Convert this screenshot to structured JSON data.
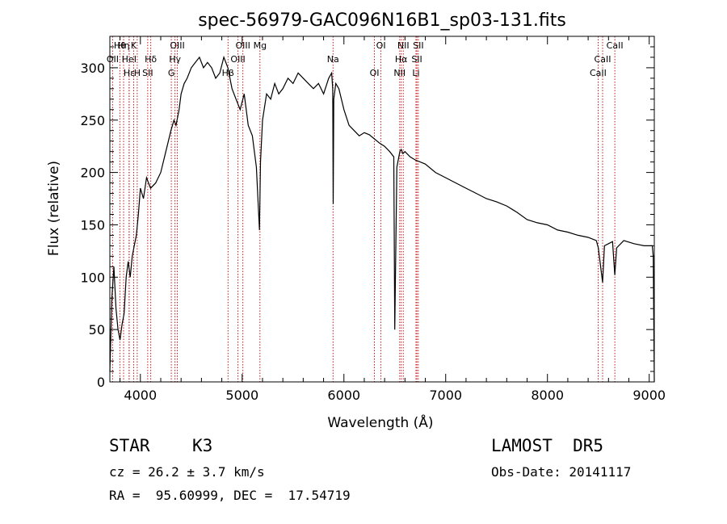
{
  "chart_data": {
    "type": "line",
    "title": "spec-56979-GAC096N16B1_sp03-131.fits",
    "xlabel": "Wavelength (Å)",
    "ylabel": "Flux (relative)",
    "xlim": [
      3700,
      9050
    ],
    "ylim": [
      0,
      330
    ],
    "xticks": [
      4000,
      5000,
      6000,
      7000,
      8000,
      9000
    ],
    "xtick_labels": [
      "4000",
      "5000",
      "6000",
      "7000",
      "8000",
      "9000"
    ],
    "yticks": [
      0,
      50,
      100,
      150,
      200,
      250,
      300
    ],
    "ytick_labels": [
      "0",
      "50",
      "100",
      "150",
      "200",
      "250",
      "300"
    ],
    "series": [
      {
        "x": [
          3700,
          3720,
          3740,
          3760,
          3780,
          3800,
          3820,
          3840,
          3860,
          3880,
          3900,
          3920,
          3940,
          3960,
          3980,
          4000,
          4030,
          4060,
          4100,
          4150,
          4200,
          4250,
          4300,
          4330,
          4350,
          4380,
          4400,
          4430,
          4460,
          4500,
          4540,
          4580,
          4620,
          4660,
          4700,
          4740,
          4780,
          4820,
          4860,
          4900,
          4940,
          4980,
          5020,
          5060,
          5100,
          5140,
          5170,
          5180,
          5200,
          5240,
          5280,
          5320,
          5360,
          5400,
          5450,
          5500,
          5550,
          5600,
          5650,
          5700,
          5750,
          5800,
          5850,
          5880,
          5890,
          5895,
          5900,
          5920,
          5950,
          6000,
          6050,
          6100,
          6150,
          6200,
          6250,
          6300,
          6350,
          6400,
          6450,
          6490,
          6500,
          6520,
          6550,
          6563,
          6580,
          6600,
          6650,
          6700,
          6800,
          6900,
          7000,
          7100,
          7200,
          7300,
          7400,
          7500,
          7600,
          7700,
          7800,
          7900,
          8000,
          8100,
          8200,
          8300,
          8400,
          8480,
          8500,
          8542,
          8560,
          8600,
          8640,
          8662,
          8680,
          8750,
          8850,
          8950,
          9000,
          9030,
          9040,
          9050
        ],
        "y": [
          10,
          80,
          110,
          70,
          50,
          40,
          55,
          65,
          100,
          115,
          100,
          120,
          130,
          140,
          160,
          185,
          175,
          195,
          185,
          190,
          200,
          220,
          240,
          250,
          245,
          260,
          275,
          285,
          290,
          300,
          305,
          310,
          300,
          305,
          300,
          290,
          295,
          310,
          300,
          280,
          270,
          260,
          275,
          245,
          235,
          205,
          145,
          210,
          250,
          275,
          270,
          285,
          275,
          280,
          290,
          285,
          295,
          290,
          285,
          280,
          285,
          275,
          290,
          295,
          280,
          170,
          270,
          285,
          280,
          260,
          245,
          240,
          235,
          238,
          236,
          232,
          228,
          225,
          220,
          215,
          50,
          205,
          220,
          222,
          218,
          220,
          215,
          212,
          208,
          200,
          195,
          190,
          185,
          180,
          175,
          172,
          168,
          162,
          155,
          152,
          150,
          145,
          143,
          140,
          138,
          135,
          128,
          95,
          130,
          132,
          134,
          102,
          128,
          135,
          132,
          130,
          130,
          130,
          120,
          0
        ]
      }
    ],
    "lines": [
      {
        "label": "Hθ",
        "x": 3798
      },
      {
        "label": "OII",
        "x": 3727
      },
      {
        "label": "Hε",
        "x": 3890
      },
      {
        "label": "K",
        "x": 3934
      },
      {
        "label": "HeI",
        "x": 3889
      },
      {
        "label": "H",
        "x": 3969
      },
      {
        "label": "Hη",
        "x": 3835
      },
      {
        "label": "Hδ",
        "x": 4102
      },
      {
        "label": "SII",
        "x": 4072
      },
      {
        "label": "OIII",
        "x": 4363
      },
      {
        "label": "Hγ",
        "x": 4340
      },
      {
        "label": "G",
        "x": 4304
      },
      {
        "label": "OIII",
        "x": 5007
      },
      {
        "label": "OIII",
        "x": 4959
      },
      {
        "label": "Hβ",
        "x": 4861
      },
      {
        "label": "Mg",
        "x": 5175
      },
      {
        "label": "Na",
        "x": 5893
      },
      {
        "label": "OI",
        "x": 6300
      },
      {
        "label": "OI",
        "x": 6364
      },
      {
        "label": "Hα",
        "x": 6563
      },
      {
        "label": "NII",
        "x": 6548
      },
      {
        "label": "NII",
        "x": 6583
      },
      {
        "label": "SII",
        "x": 6717
      },
      {
        "label": "Li",
        "x": 6708
      },
      {
        "label": "SII",
        "x": 6731
      },
      {
        "label": "CaII",
        "x": 8542
      },
      {
        "label": "CaII",
        "x": 8498
      },
      {
        "label": "CaII",
        "x": 8662
      }
    ],
    "grid": false,
    "legend": false
  },
  "info": {
    "object_class": "STAR",
    "subclass": "K3",
    "survey": "LAMOST  DR5",
    "cz": "cz = 26.2 ± 3.7 km/s",
    "obs_date": "Obs-Date: 20141117",
    "coords": "RA =  95.60999, DEC =  17.54719"
  },
  "colors": {
    "spectrum": "#000000",
    "line_marker": "#c00000",
    "axes": "#000000",
    "background": "#ffffff"
  }
}
